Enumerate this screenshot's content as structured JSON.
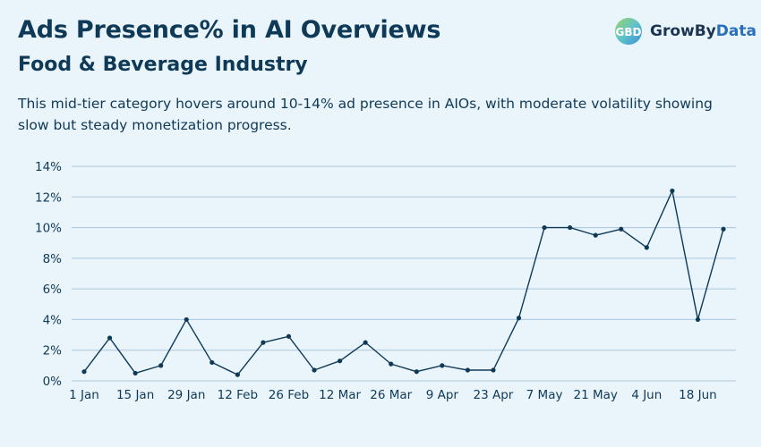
{
  "header": {
    "title": "Ads Presence% in AI Overviews",
    "subtitle": "Food & Beverage Industry",
    "description": "This mid-tier category hovers around 10-14% ad presence in AIOs, with moderate volatility showing slow but steady monetization progress."
  },
  "brand": {
    "name_part1": "GrowBy",
    "name_part2": "Data",
    "logo_letters": "GBD"
  },
  "colors": {
    "background": "#eaf4fb",
    "line": "#0f3a57",
    "grid": "#a9c7dc",
    "text": "#0f3a57"
  },
  "chart_data": {
    "type": "line",
    "title": "Ads Presence% in AI Overviews",
    "subtitle": "Food & Beverage Industry",
    "xlabel": "",
    "ylabel": "",
    "ylim": [
      0,
      14
    ],
    "yticks": [
      "0%",
      "2%",
      "4%",
      "6%",
      "8%",
      "10%",
      "12%",
      "14%"
    ],
    "grid": true,
    "x_tick_labels": [
      "1 Jan",
      "15 Jan",
      "29 Jan",
      "12 Feb",
      "26 Feb",
      "12 Mar",
      "26 Mar",
      "9 Apr",
      "23 Apr",
      "7 May",
      "21 May",
      "4 Jun",
      "18 Jun"
    ],
    "x": [
      "1 Jan",
      "8 Jan",
      "15 Jan",
      "22 Jan",
      "29 Jan",
      "5 Feb",
      "12 Feb",
      "19 Feb",
      "26 Feb",
      "5 Mar",
      "12 Mar",
      "19 Mar",
      "26 Mar",
      "2 Apr",
      "9 Apr",
      "16 Apr",
      "23 Apr",
      "30 Apr",
      "7 May",
      "14 May",
      "21 May",
      "28 May",
      "4 Jun",
      "11 Jun",
      "18 Jun",
      "25 Jun"
    ],
    "series": [
      {
        "values": [
          0.6,
          2.8,
          0.5,
          1.0,
          4.0,
          1.2,
          0.4,
          2.5,
          2.9,
          0.7,
          1.3,
          2.5,
          1.1,
          0.6,
          1.0,
          0.7,
          0.7,
          4.1,
          10.0,
          10.0,
          9.5,
          9.9,
          8.7,
          12.4,
          4.0,
          9.9
        ]
      }
    ]
  }
}
